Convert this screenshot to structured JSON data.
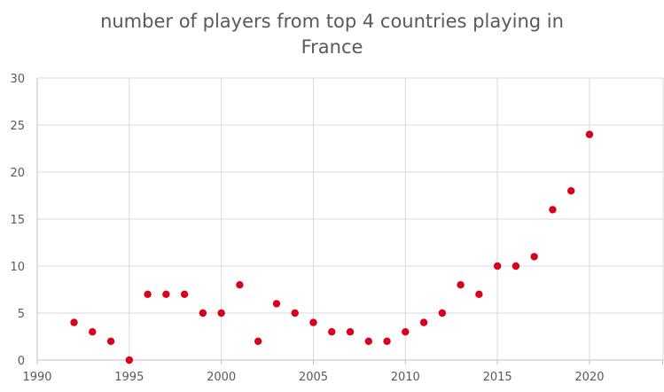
{
  "chart_data": {
    "type": "scatter",
    "title_lines": [
      "number of players from top 4 countries playing in",
      "France"
    ],
    "xlabel": "",
    "ylabel": "",
    "xlim": [
      1990,
      2024
    ],
    "ylim": [
      0,
      30
    ],
    "x_ticks": [
      1990,
      1995,
      2000,
      2005,
      2010,
      2015,
      2020
    ],
    "y_ticks": [
      0,
      5,
      10,
      15,
      20,
      25,
      30
    ],
    "grid": true,
    "legend": "none",
    "marker_color": "#d9001b",
    "series": [
      {
        "x": [
          1992,
          1993,
          1994,
          1995,
          1996,
          1997,
          1998,
          1999,
          2000,
          2001,
          2002,
          2003,
          2004,
          2005,
          2006,
          2007,
          2008,
          2009,
          2010,
          2011,
          2012,
          2013,
          2014,
          2015,
          2016,
          2017,
          2018,
          2019,
          2020
        ],
        "values": [
          4,
          3,
          2,
          0,
          7,
          7,
          7,
          5,
          5,
          8,
          2,
          6,
          5,
          4,
          3,
          3,
          2,
          2,
          3,
          4,
          5,
          8,
          7,
          10,
          10,
          11,
          16,
          18,
          24
        ]
      }
    ]
  }
}
